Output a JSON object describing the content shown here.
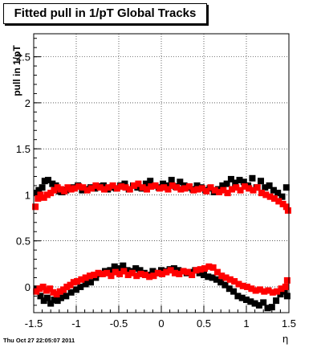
{
  "chart_data": {
    "type": "scatter",
    "title": "Fitted pull in 1/pT  Global Tracks",
    "xlabel": "η",
    "ylabel": "pull in 1/pT",
    "xlim": [
      -1.5,
      1.5
    ],
    "ylim": [
      -0.28,
      2.75
    ],
    "xticks": [
      "-1.5",
      "-1",
      "-0.5",
      "0",
      "0.5",
      "1",
      "1.5"
    ],
    "yticks": [
      "0",
      "0.5",
      "1",
      "1.5",
      "2",
      "2.5"
    ],
    "grid": true,
    "series": [
      {
        "color": "#000000",
        "marker": "square",
        "x": [
          -1.46,
          -1.44,
          -1.4,
          -1.37,
          -1.33,
          -1.28,
          -1.24,
          -1.2,
          -1.17,
          -1.12,
          -1.08,
          -1.03,
          -0.98,
          -0.93,
          -0.88,
          -0.83,
          -0.78,
          -0.73,
          -0.68,
          -0.63,
          -0.58,
          -0.53,
          -0.48,
          -0.43,
          -0.38,
          -0.33,
          -0.28,
          -0.23,
          -0.18,
          -0.13,
          -0.08,
          -0.03,
          0.02,
          0.07,
          0.12,
          0.17,
          0.22,
          0.27,
          0.32,
          0.37,
          0.42,
          0.47,
          0.52,
          0.57,
          0.62,
          0.67,
          0.72,
          0.77,
          0.82,
          0.87,
          0.92,
          0.97,
          1.02,
          1.07,
          1.12,
          1.17,
          1.22,
          1.27,
          1.32,
          1.37,
          1.42,
          1.47,
          -1.46,
          -1.42,
          -1.38,
          -1.34,
          -1.3,
          -1.26,
          -1.22,
          -1.18,
          -1.12,
          -1.06,
          -1.0,
          -0.95,
          -0.89,
          -0.83,
          -0.77,
          -0.72,
          -0.66,
          -0.6,
          -0.55,
          -0.5,
          -0.45,
          -0.4,
          -0.35,
          -0.3,
          -0.25,
          -0.2,
          -0.15,
          -0.1,
          -0.05,
          0.0,
          0.05,
          0.1,
          0.15,
          0.2,
          0.25,
          0.3,
          0.35,
          0.4,
          0.45,
          0.5,
          0.55,
          0.6,
          0.65,
          0.7,
          0.75,
          0.8,
          0.85,
          0.9,
          0.95,
          1.0,
          1.05,
          1.1,
          1.15,
          1.2,
          1.25,
          1.3,
          1.35,
          1.4,
          1.45,
          1.48
        ],
        "y": [
          1.02,
          1.05,
          1.08,
          1.15,
          1.16,
          1.12,
          1.1,
          1.04,
          1.03,
          1.05,
          1.07,
          1.08,
          1.1,
          1.05,
          1.06,
          1.08,
          1.07,
          1.09,
          1.1,
          1.06,
          1.08,
          1.07,
          1.1,
          1.12,
          1.06,
          1.1,
          1.08,
          1.07,
          1.12,
          1.15,
          1.1,
          1.08,
          1.12,
          1.1,
          1.16,
          1.09,
          1.14,
          1.1,
          1.08,
          1.06,
          1.1,
          1.08,
          1.05,
          1.07,
          1.03,
          1.06,
          1.1,
          1.12,
          1.17,
          1.13,
          1.16,
          1.14,
          1.1,
          1.18,
          1.08,
          1.15,
          1.08,
          1.1,
          1.05,
          1.02,
          0.98,
          1.08,
          -0.02,
          -0.1,
          -0.15,
          -0.12,
          -0.18,
          -0.14,
          -0.15,
          -0.12,
          -0.1,
          -0.06,
          -0.03,
          0.0,
          0.03,
          0.05,
          0.1,
          0.14,
          0.17,
          0.18,
          0.22,
          0.2,
          0.23,
          0.18,
          0.17,
          0.2,
          0.18,
          0.15,
          0.13,
          0.17,
          0.15,
          0.18,
          0.17,
          0.19,
          0.2,
          0.18,
          0.17,
          0.15,
          0.16,
          0.18,
          0.15,
          0.13,
          0.11,
          0.1,
          0.08,
          0.05,
          0.02,
          -0.02,
          -0.05,
          -0.1,
          -0.12,
          -0.14,
          -0.16,
          -0.18,
          -0.2,
          -0.17,
          -0.23,
          -0.22,
          -0.15,
          -0.08,
          -0.05,
          -0.1
        ]
      },
      {
        "color": "#ff0000",
        "marker": "square",
        "x": [
          -1.48,
          -1.45,
          -1.42,
          -1.38,
          -1.34,
          -1.3,
          -1.26,
          -1.22,
          -1.18,
          -1.14,
          -1.1,
          -1.06,
          -1.02,
          -0.97,
          -0.92,
          -0.87,
          -0.82,
          -0.77,
          -0.72,
          -0.67,
          -0.62,
          -0.57,
          -0.52,
          -0.47,
          -0.42,
          -0.37,
          -0.32,
          -0.27,
          -0.22,
          -0.17,
          -0.12,
          -0.07,
          -0.02,
          0.03,
          0.08,
          0.13,
          0.18,
          0.23,
          0.28,
          0.33,
          0.38,
          0.43,
          0.48,
          0.53,
          0.58,
          0.63,
          0.68,
          0.73,
          0.78,
          0.83,
          0.88,
          0.93,
          0.98,
          1.03,
          1.08,
          1.13,
          1.18,
          1.23,
          1.28,
          1.33,
          1.38,
          1.43,
          1.47,
          1.49,
          -1.47,
          -1.43,
          -1.39,
          -1.35,
          -1.31,
          -1.27,
          -1.23,
          -1.19,
          -1.15,
          -1.11,
          -1.07,
          -1.03,
          -0.99,
          -0.94,
          -0.89,
          -0.84,
          -0.79,
          -0.74,
          -0.69,
          -0.64,
          -0.59,
          -0.54,
          -0.49,
          -0.44,
          -0.39,
          -0.34,
          -0.29,
          -0.24,
          -0.19,
          -0.14,
          -0.09,
          -0.04,
          0.01,
          0.06,
          0.11,
          0.16,
          0.21,
          0.26,
          0.31,
          0.36,
          0.41,
          0.46,
          0.51,
          0.56,
          0.61,
          0.66,
          0.71,
          0.76,
          0.81,
          0.86,
          0.91,
          0.96,
          1.01,
          1.06,
          1.11,
          1.16,
          1.21,
          1.26,
          1.31,
          1.36,
          1.41,
          1.46,
          1.48
        ],
        "y": [
          0.87,
          0.96,
          1.0,
          0.97,
          1.0,
          1.02,
          1.05,
          1.08,
          1.06,
          1.04,
          1.08,
          1.06,
          1.07,
          1.09,
          1.08,
          1.05,
          1.07,
          1.1,
          1.08,
          1.06,
          1.08,
          1.1,
          1.07,
          1.09,
          1.08,
          1.06,
          1.1,
          1.12,
          1.08,
          1.06,
          1.09,
          1.1,
          1.07,
          1.08,
          1.06,
          1.1,
          1.08,
          1.06,
          1.07,
          1.09,
          1.05,
          1.06,
          1.07,
          1.04,
          1.08,
          1.05,
          1.03,
          1.05,
          1.02,
          1.06,
          1.08,
          1.05,
          1.09,
          1.07,
          1.05,
          1.08,
          1.02,
          1.0,
          0.98,
          0.96,
          0.93,
          0.9,
          0.87,
          0.83,
          -0.05,
          -0.02,
          0.0,
          -0.04,
          -0.02,
          -0.06,
          -0.08,
          -0.05,
          -0.03,
          0.0,
          0.02,
          0.05,
          0.06,
          0.08,
          0.1,
          0.12,
          0.13,
          0.15,
          0.14,
          0.15,
          0.12,
          0.16,
          0.14,
          0.17,
          0.13,
          0.15,
          0.12,
          0.14,
          0.13,
          0.11,
          0.12,
          0.15,
          0.14,
          0.16,
          0.18,
          0.15,
          0.14,
          0.17,
          0.16,
          0.13,
          0.18,
          0.19,
          0.2,
          0.22,
          0.21,
          0.16,
          0.12,
          0.1,
          0.08,
          0.06,
          0.03,
          0.01,
          0.0,
          -0.02,
          -0.04,
          -0.03,
          -0.05,
          -0.04,
          -0.06,
          -0.05,
          -0.02,
          0.0,
          0.07
        ]
      }
    ]
  },
  "footer": {
    "timestamp": "Thu Oct 27 22:05:07 2011"
  }
}
